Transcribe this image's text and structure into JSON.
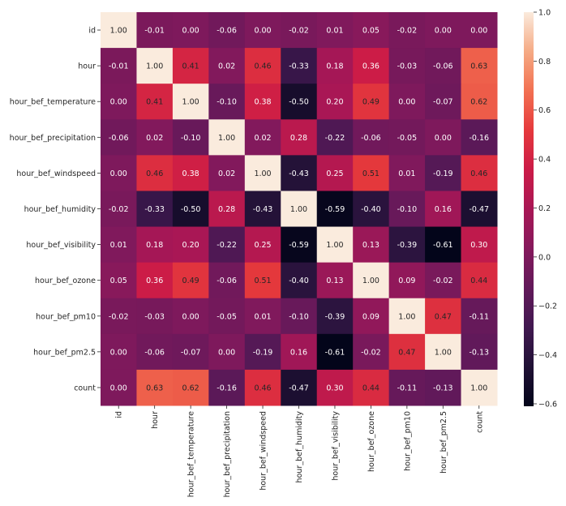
{
  "chart_data": {
    "type": "heatmap",
    "title": "",
    "labels": [
      "id",
      "hour",
      "hour_bef_temperature",
      "hour_bef_precipitation",
      "hour_bef_windspeed",
      "hour_bef_humidity",
      "hour_bef_visibility",
      "hour_bef_ozone",
      "hour_bef_pm10",
      "hour_bef_pm2.5",
      "count"
    ],
    "matrix": [
      [
        1.0,
        -0.01,
        -0.0,
        -0.06,
        -0.0,
        -0.02,
        0.01,
        0.05,
        -0.02,
        0.0,
        -0.0
      ],
      [
        -0.01,
        1.0,
        0.41,
        0.02,
        0.46,
        -0.33,
        0.18,
        0.36,
        -0.03,
        -0.06,
        0.63
      ],
      [
        -0.0,
        0.41,
        1.0,
        -0.1,
        0.38,
        -0.5,
        0.2,
        0.49,
        -0.0,
        -0.07,
        0.62
      ],
      [
        -0.06,
        0.02,
        -0.1,
        1.0,
        0.02,
        0.28,
        -0.22,
        -0.06,
        -0.05,
        0.0,
        -0.16
      ],
      [
        -0.0,
        0.46,
        0.38,
        0.02,
        1.0,
        -0.43,
        0.25,
        0.51,
        0.01,
        -0.19,
        0.46
      ],
      [
        -0.02,
        -0.33,
        -0.5,
        0.28,
        -0.43,
        1.0,
        -0.59,
        -0.4,
        -0.1,
        0.16,
        -0.47
      ],
      [
        0.01,
        0.18,
        0.2,
        -0.22,
        0.25,
        -0.59,
        1.0,
        0.13,
        -0.39,
        -0.61,
        0.3
      ],
      [
        0.05,
        0.36,
        0.49,
        -0.06,
        0.51,
        -0.4,
        0.13,
        1.0,
        0.09,
        -0.02,
        0.44
      ],
      [
        -0.02,
        -0.03,
        -0.0,
        -0.05,
        0.01,
        -0.1,
        -0.39,
        0.09,
        1.0,
        0.47,
        -0.11
      ],
      [
        0.0,
        -0.06,
        -0.07,
        0.0,
        -0.19,
        0.16,
        -0.61,
        -0.02,
        0.47,
        1.0,
        -0.13
      ],
      [
        -0.0,
        0.63,
        0.62,
        -0.16,
        0.46,
        -0.47,
        0.3,
        0.44,
        -0.11,
        -0.13,
        1.0
      ]
    ],
    "colorbar": {
      "vmin": -0.61,
      "vmax": 1.0,
      "ticks": [
        1.0,
        0.8,
        0.6,
        0.4,
        0.2,
        0.0,
        -0.2,
        -0.4,
        -0.6
      ],
      "tick_labels": [
        "1.0",
        "0.8",
        "0.6",
        "0.4",
        "0.2",
        "0.0",
        "−0.2",
        "−0.4",
        "−0.6"
      ]
    },
    "colormap": "rocket",
    "annotations_format": "0.00"
  }
}
